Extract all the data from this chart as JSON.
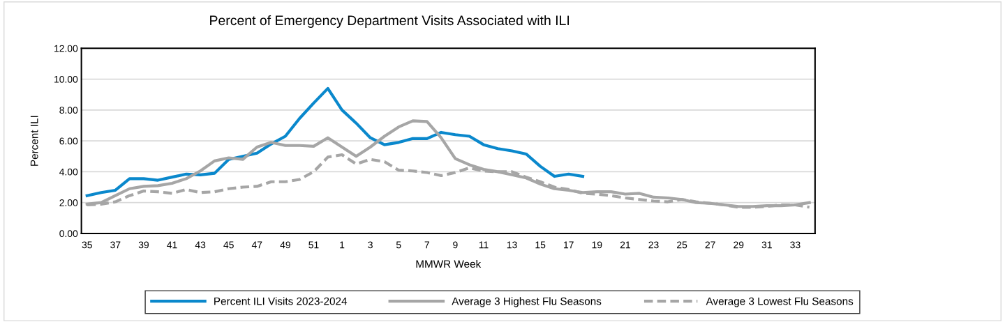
{
  "chart_data": {
    "type": "line",
    "title": "Percent of Emergency Department Visits Associated with ILI",
    "xlabel": "MMWR Week",
    "ylabel": "Percent ILI",
    "categories": [
      "35",
      null,
      "37",
      null,
      "39",
      null,
      "41",
      null,
      "43",
      null,
      "45",
      null,
      "47",
      null,
      "49",
      null,
      "51",
      null,
      "1",
      null,
      "3",
      null,
      "5",
      null,
      "7",
      null,
      "9",
      null,
      "11",
      null,
      "13",
      null,
      "15",
      null,
      "17",
      null,
      "19",
      null,
      "21",
      null,
      "23",
      null,
      "25",
      null,
      "27",
      null,
      "29",
      null,
      "31",
      null,
      "33",
      null
    ],
    "series": [
      {
        "name": "Percent ILI Visits 2023-2024",
        "color": "#0a88cc",
        "line_style": "solid",
        "values": [
          2.45,
          2.65,
          2.8,
          3.55,
          3.55,
          3.45,
          3.65,
          3.85,
          3.8,
          3.9,
          4.8,
          5.0,
          5.2,
          5.8,
          6.3,
          7.45,
          8.45,
          9.4,
          8.0,
          7.15,
          6.2,
          5.75,
          5.9,
          6.15,
          6.15,
          6.55,
          6.4,
          6.3,
          5.75,
          5.5,
          5.35,
          5.15,
          4.35,
          3.7,
          3.85,
          3.7,
          null,
          null,
          null,
          null,
          null,
          null,
          null,
          null,
          null,
          null,
          null,
          null,
          null,
          null,
          null,
          null
        ]
      },
      {
        "name": "Average 3 Highest Flu Seasons",
        "color": "#a6a6a6",
        "line_style": "solid",
        "values": [
          1.9,
          2.0,
          2.45,
          2.9,
          3.05,
          3.1,
          3.25,
          3.55,
          4.05,
          4.7,
          4.9,
          4.8,
          5.6,
          5.9,
          5.7,
          5.7,
          5.65,
          6.2,
          5.6,
          5.0,
          5.6,
          6.3,
          6.9,
          7.3,
          7.25,
          6.2,
          4.85,
          4.45,
          4.15,
          4.0,
          3.8,
          3.6,
          3.2,
          2.9,
          2.8,
          2.65,
          2.7,
          2.7,
          2.55,
          2.6,
          2.35,
          2.3,
          2.2,
          2.0,
          1.95,
          1.85,
          1.75,
          1.75,
          1.8,
          1.8,
          1.85,
          2.0
        ]
      },
      {
        "name": "Average 3 Lowest Flu Seasons",
        "color": "#a6a6a6",
        "line_style": "dashed",
        "values": [
          1.85,
          1.9,
          2.05,
          2.45,
          2.75,
          2.7,
          2.6,
          2.85,
          2.65,
          2.7,
          2.9,
          3.0,
          3.05,
          3.35,
          3.35,
          3.5,
          4.0,
          4.95,
          5.1,
          4.5,
          4.8,
          4.65,
          4.1,
          4.05,
          3.95,
          3.75,
          3.95,
          4.25,
          4.05,
          4.0,
          4.0,
          3.65,
          3.35,
          3.0,
          2.85,
          2.6,
          2.55,
          2.45,
          2.3,
          2.2,
          2.1,
          2.05,
          2.2,
          2.05,
          1.95,
          1.85,
          1.7,
          1.7,
          1.75,
          1.85,
          1.85,
          1.7
        ]
      }
    ],
    "ylim": [
      0,
      12
    ],
    "yticks": [
      {
        "value": 0,
        "label": "0.00"
      },
      {
        "value": 2,
        "label": "2.00"
      },
      {
        "value": 4,
        "label": "4.00"
      },
      {
        "value": 6,
        "label": "6.00"
      },
      {
        "value": 8,
        "label": "8.00"
      },
      {
        "value": 10,
        "label": "10.00"
      },
      {
        "value": 12,
        "label": "12.00"
      }
    ],
    "grid": "y",
    "legend": "bottom"
  }
}
